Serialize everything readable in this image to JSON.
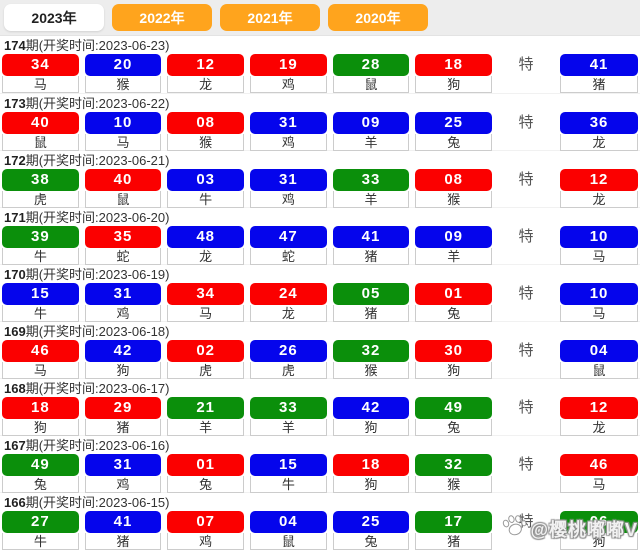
{
  "tabs": [
    {
      "label": "2023年",
      "active": true
    },
    {
      "label": "2022年",
      "active": false
    },
    {
      "label": "2021年",
      "active": false
    },
    {
      "label": "2020年",
      "active": false
    }
  ],
  "special_label": "特",
  "colors": {
    "red": "#fb0000",
    "blue": "#0505ec",
    "green": "#0b8f0b",
    "orange": "#ffa41d"
  },
  "watermark": {
    "icon": "paw-icon",
    "handle": "@樱桃嘟嘟V"
  },
  "draws": [
    {
      "period_num": "174",
      "header_rest": "期(开奖时间:2023-06-23)",
      "balls": [
        {
          "num": "34",
          "zodiac": "马",
          "color": "red"
        },
        {
          "num": "20",
          "zodiac": "猴",
          "color": "blue"
        },
        {
          "num": "12",
          "zodiac": "龙",
          "color": "red"
        },
        {
          "num": "19",
          "zodiac": "鸡",
          "color": "red"
        },
        {
          "num": "28",
          "zodiac": "鼠",
          "color": "green"
        },
        {
          "num": "18",
          "zodiac": "狗",
          "color": "red"
        }
      ],
      "special": {
        "num": "41",
        "zodiac": "猪",
        "color": "blue"
      }
    },
    {
      "period_num": "173",
      "header_rest": "期(开奖时间:2023-06-22)",
      "balls": [
        {
          "num": "40",
          "zodiac": "鼠",
          "color": "red"
        },
        {
          "num": "10",
          "zodiac": "马",
          "color": "blue"
        },
        {
          "num": "08",
          "zodiac": "猴",
          "color": "red"
        },
        {
          "num": "31",
          "zodiac": "鸡",
          "color": "blue"
        },
        {
          "num": "09",
          "zodiac": "羊",
          "color": "blue"
        },
        {
          "num": "25",
          "zodiac": "兔",
          "color": "blue"
        }
      ],
      "special": {
        "num": "36",
        "zodiac": "龙",
        "color": "blue"
      }
    },
    {
      "period_num": "172",
      "header_rest": "期(开奖时间:2023-06-21)",
      "balls": [
        {
          "num": "38",
          "zodiac": "虎",
          "color": "green"
        },
        {
          "num": "40",
          "zodiac": "鼠",
          "color": "red"
        },
        {
          "num": "03",
          "zodiac": "牛",
          "color": "blue"
        },
        {
          "num": "31",
          "zodiac": "鸡",
          "color": "blue"
        },
        {
          "num": "33",
          "zodiac": "羊",
          "color": "green"
        },
        {
          "num": "08",
          "zodiac": "猴",
          "color": "red"
        }
      ],
      "special": {
        "num": "12",
        "zodiac": "龙",
        "color": "red"
      }
    },
    {
      "period_num": "171",
      "header_rest": "期(开奖时间:2023-06-20)",
      "balls": [
        {
          "num": "39",
          "zodiac": "牛",
          "color": "green"
        },
        {
          "num": "35",
          "zodiac": "蛇",
          "color": "red"
        },
        {
          "num": "48",
          "zodiac": "龙",
          "color": "blue"
        },
        {
          "num": "47",
          "zodiac": "蛇",
          "color": "blue"
        },
        {
          "num": "41",
          "zodiac": "猪",
          "color": "blue"
        },
        {
          "num": "09",
          "zodiac": "羊",
          "color": "blue"
        }
      ],
      "special": {
        "num": "10",
        "zodiac": "马",
        "color": "blue"
      }
    },
    {
      "period_num": "170",
      "header_rest": "期(开奖时间:2023-06-19)",
      "balls": [
        {
          "num": "15",
          "zodiac": "牛",
          "color": "blue"
        },
        {
          "num": "31",
          "zodiac": "鸡",
          "color": "blue"
        },
        {
          "num": "34",
          "zodiac": "马",
          "color": "red"
        },
        {
          "num": "24",
          "zodiac": "龙",
          "color": "red"
        },
        {
          "num": "05",
          "zodiac": "猪",
          "color": "green"
        },
        {
          "num": "01",
          "zodiac": "兔",
          "color": "red"
        }
      ],
      "special": {
        "num": "10",
        "zodiac": "马",
        "color": "blue"
      }
    },
    {
      "period_num": "169",
      "header_rest": "期(开奖时间:2023-06-18)",
      "balls": [
        {
          "num": "46",
          "zodiac": "马",
          "color": "red"
        },
        {
          "num": "42",
          "zodiac": "狗",
          "color": "blue"
        },
        {
          "num": "02",
          "zodiac": "虎",
          "color": "red"
        },
        {
          "num": "26",
          "zodiac": "虎",
          "color": "blue"
        },
        {
          "num": "32",
          "zodiac": "猴",
          "color": "green"
        },
        {
          "num": "30",
          "zodiac": "狗",
          "color": "red"
        }
      ],
      "special": {
        "num": "04",
        "zodiac": "鼠",
        "color": "blue"
      }
    },
    {
      "period_num": "168",
      "header_rest": "期(开奖时间:2023-06-17)",
      "balls": [
        {
          "num": "18",
          "zodiac": "狗",
          "color": "red"
        },
        {
          "num": "29",
          "zodiac": "猪",
          "color": "red"
        },
        {
          "num": "21",
          "zodiac": "羊",
          "color": "green"
        },
        {
          "num": "33",
          "zodiac": "羊",
          "color": "green"
        },
        {
          "num": "42",
          "zodiac": "狗",
          "color": "blue"
        },
        {
          "num": "49",
          "zodiac": "兔",
          "color": "green"
        }
      ],
      "special": {
        "num": "12",
        "zodiac": "龙",
        "color": "red"
      }
    },
    {
      "period_num": "167",
      "header_rest": "期(开奖时间:2023-06-16)",
      "balls": [
        {
          "num": "49",
          "zodiac": "兔",
          "color": "green"
        },
        {
          "num": "31",
          "zodiac": "鸡",
          "color": "blue"
        },
        {
          "num": "01",
          "zodiac": "兔",
          "color": "red"
        },
        {
          "num": "15",
          "zodiac": "牛",
          "color": "blue"
        },
        {
          "num": "18",
          "zodiac": "狗",
          "color": "red"
        },
        {
          "num": "32",
          "zodiac": "猴",
          "color": "green"
        }
      ],
      "special": {
        "num": "46",
        "zodiac": "马",
        "color": "red"
      }
    },
    {
      "period_num": "166",
      "header_rest": "期(开奖时间:2023-06-15)",
      "balls": [
        {
          "num": "27",
          "zodiac": "牛",
          "color": "green"
        },
        {
          "num": "41",
          "zodiac": "猪",
          "color": "blue"
        },
        {
          "num": "07",
          "zodiac": "鸡",
          "color": "red"
        },
        {
          "num": "04",
          "zodiac": "鼠",
          "color": "blue"
        },
        {
          "num": "25",
          "zodiac": "兔",
          "color": "blue"
        },
        {
          "num": "17",
          "zodiac": "猪",
          "color": "green"
        }
      ],
      "special": {
        "num": "06",
        "zodiac": "狗",
        "color": "green"
      }
    }
  ]
}
